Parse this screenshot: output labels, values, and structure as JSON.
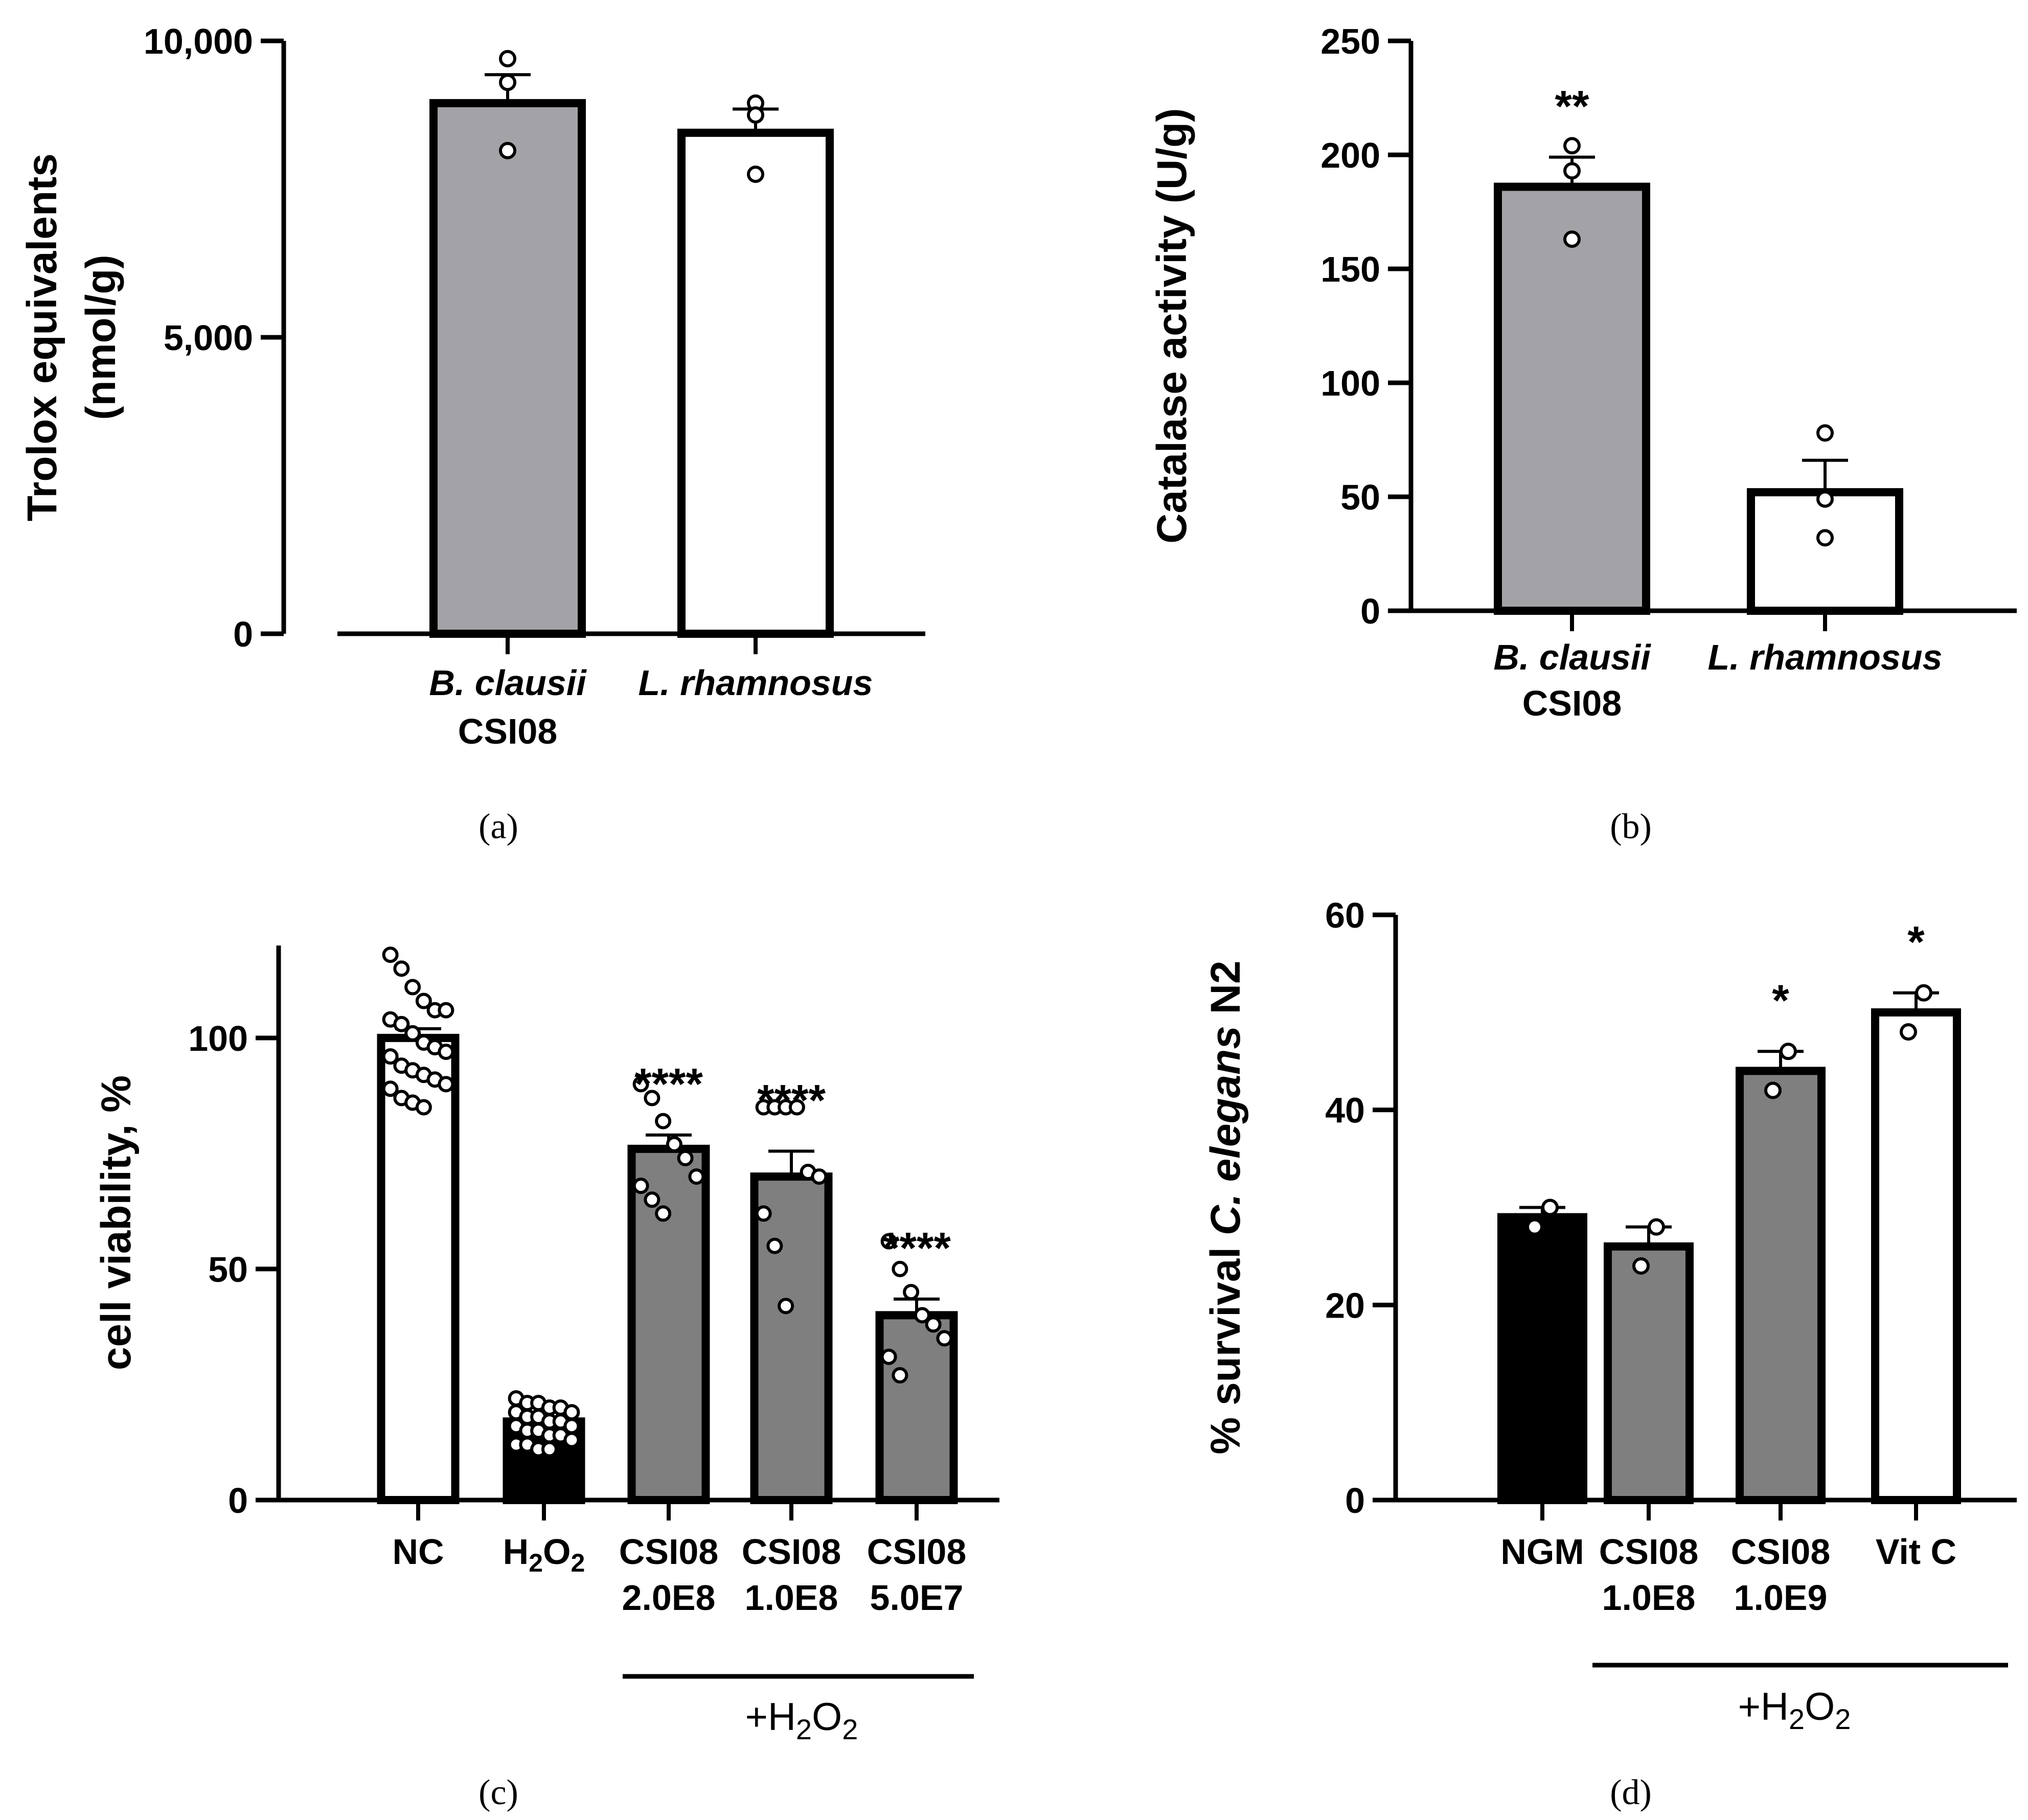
{
  "panels": {
    "a": {
      "label": "(a)"
    },
    "b": {
      "label": "(b)"
    },
    "c": {
      "label": "(c)",
      "treat_line": "+H",
      "treat_sub1": "2",
      "treat_mid": "O",
      "treat_sub2": "2"
    },
    "d": {
      "label": "(d)",
      "treat_line": "+H",
      "treat_sub1": "2",
      "treat_mid": "O",
      "treat_sub2": "2"
    }
  },
  "colors": {
    "gray": "#a3a2a6",
    "darkgray": "#7f7f7f",
    "black": "#000000",
    "white": "#ffffff"
  },
  "chart_data": [
    {
      "id": "a",
      "type": "bar",
      "ylabel_line1": "Trolox equivalents",
      "ylabel_line2": "(nmol/g)",
      "ylim": [
        0,
        10000
      ],
      "yticks": [
        0,
        5000,
        10000
      ],
      "ytick_labels": [
        "0",
        "5,000",
        "10,000"
      ],
      "categories": [
        {
          "line1": "B. clausii",
          "line2": "CSI08",
          "italic": true
        },
        {
          "line1": "L. rhamnosus",
          "line2": "",
          "italic": true
        }
      ],
      "values": [
        8950,
        8450
      ],
      "errors": [
        480,
        400
      ],
      "fills": [
        "#a3a2a6",
        "#ffffff"
      ],
      "points": [
        [
          9700,
          9300,
          8150
        ],
        [
          8950,
          8750,
          7750
        ]
      ],
      "signif": [
        "",
        ""
      ]
    },
    {
      "id": "b",
      "type": "bar",
      "ylabel_line1": "Catalase activity (U/g)",
      "ylabel_line2": "",
      "ylim": [
        0,
        250
      ],
      "yticks": [
        0,
        50,
        100,
        150,
        200,
        250
      ],
      "ytick_labels": [
        "0",
        "50",
        "100",
        "150",
        "200",
        "250"
      ],
      "categories": [
        {
          "line1": "B. clausii",
          "line2": "CSI08",
          "italic": true
        },
        {
          "line1": "L. rhamnosus",
          "line2": "",
          "italic": true
        }
      ],
      "values": [
        186,
        52
      ],
      "errors": [
        13,
        14
      ],
      "fills": [
        "#a3a2a6",
        "#ffffff"
      ],
      "points": [
        [
          204,
          193,
          163
        ],
        [
          78,
          49,
          32
        ]
      ],
      "signif": [
        "**",
        ""
      ]
    },
    {
      "id": "c",
      "type": "bar",
      "ylabel_line1": "cell viability, %",
      "ylabel_line2": "",
      "ylim": [
        0,
        120
      ],
      "yticks": [
        0,
        50,
        100
      ],
      "ytick_labels": [
        "0",
        "50",
        "100"
      ],
      "categories": [
        {
          "line1": "NC",
          "line2": ""
        },
        {
          "line1": "H2O2",
          "line2": "",
          "subscript": true
        },
        {
          "line1": "CSI08",
          "line2": "2.0E8"
        },
        {
          "line1": "CSI08",
          "line2": "1.0E8"
        },
        {
          "line1": "CSI08",
          "line2": "5.0E7"
        }
      ],
      "values": [
        100,
        17,
        76,
        70,
        40
      ],
      "errors": [
        2,
        1,
        3,
        5.5,
        3.5
      ],
      "fills": [
        "#ffffff",
        "#000000",
        "#7f7f7f",
        "#7f7f7f",
        "#7f7f7f"
      ],
      "points": [
        [
          118,
          115,
          111,
          108,
          106,
          106,
          104,
          103,
          101,
          99,
          98,
          97,
          96,
          94,
          93,
          92,
          91,
          90,
          89,
          87,
          86,
          85
        ],
        [
          22,
          21,
          21,
          20,
          20,
          19,
          19,
          18,
          18,
          17,
          17,
          16,
          16,
          15,
          15,
          14,
          14,
          13,
          12,
          12,
          11,
          11
        ],
        [
          90,
          87,
          82,
          77,
          74,
          70,
          68,
          65,
          62
        ],
        [
          85,
          85,
          85,
          85,
          71,
          70,
          62,
          55,
          42
        ],
        [
          56,
          50,
          45,
          40,
          38,
          35,
          31,
          27
        ]
      ],
      "signif": [
        "",
        "",
        "****",
        "****",
        "****"
      ]
    },
    {
      "id": "d",
      "type": "bar",
      "ylabel_pre": "% survival ",
      "ylabel_italic": "C. elegans",
      "ylabel_post": " N2",
      "ylim": [
        0,
        60
      ],
      "yticks": [
        0,
        20,
        40,
        60
      ],
      "ytick_labels": [
        "0",
        "20",
        "40",
        "60"
      ],
      "categories": [
        {
          "line1": "NGM",
          "line2": ""
        },
        {
          "line1": "CSI08",
          "line2": "1.0E8"
        },
        {
          "line1": "CSI08",
          "line2": "1.0E9"
        },
        {
          "line1": "Vit C",
          "line2": ""
        }
      ],
      "values": [
        29,
        26,
        44,
        50
      ],
      "errors": [
        1,
        2,
        2,
        2
      ],
      "fills": [
        "#000000",
        "#7f7f7f",
        "#7f7f7f",
        "#ffffff"
      ],
      "points": [
        [
          30,
          28
        ],
        [
          28,
          24
        ],
        [
          46,
          42
        ],
        [
          52,
          48
        ]
      ],
      "signif": [
        "",
        "",
        "*",
        "*"
      ]
    }
  ]
}
